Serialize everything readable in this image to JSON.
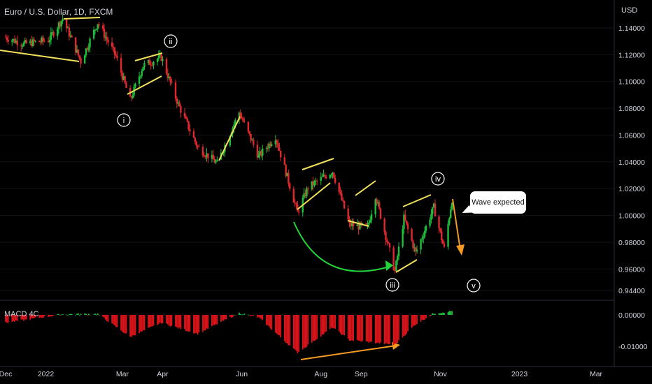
{
  "header": {
    "title": "Euro / U.S. Dollar, 1D, FXCM",
    "currency": "USD"
  },
  "macd": {
    "label": "MACD 4C",
    "ticks": [
      "0.00000",
      "-0.01000"
    ]
  },
  "chart_data": [
    {
      "type": "candlestick",
      "title": "Euro / U.S. Dollar, 1D, FXCM",
      "ylabel": "USD",
      "x_ticks": [
        "Dec",
        "2022",
        "Mar",
        "Apr",
        "Jun",
        "Aug",
        "Sep",
        "Nov",
        "2023",
        "Mar"
      ],
      "y_ticks": [
        "1.14000",
        "1.12000",
        "1.10000",
        "1.08000",
        "1.06000",
        "1.04000",
        "1.02000",
        "1.00000",
        "0.98000",
        "0.96000",
        "0.94400"
      ],
      "ylim": [
        0.938,
        1.152
      ],
      "close_path": [
        [
          "2021-12-01",
          1.133
        ],
        [
          "2021-12-15",
          1.128
        ],
        [
          "2022-01-03",
          1.131
        ],
        [
          "2022-01-14",
          1.147
        ],
        [
          "2022-01-28",
          1.115
        ],
        [
          "2022-02-10",
          1.144
        ],
        [
          "2022-02-24",
          1.119
        ],
        [
          "2022-03-07",
          1.086
        ],
        [
          "2022-03-17",
          1.112
        ],
        [
          "2022-03-31",
          1.118
        ],
        [
          "2022-04-13",
          1.083
        ],
        [
          "2022-04-28",
          1.051
        ],
        [
          "2022-05-13",
          1.039
        ],
        [
          "2022-05-30",
          1.077
        ],
        [
          "2022-06-14",
          1.044
        ],
        [
          "2022-06-27",
          1.059
        ],
        [
          "2022-07-14",
          1.002
        ],
        [
          "2022-07-22",
          1.021
        ],
        [
          "2022-08-10",
          1.033
        ],
        [
          "2022-08-23",
          0.993
        ],
        [
          "2022-09-06",
          0.991
        ],
        [
          "2022-09-12",
          1.015
        ],
        [
          "2022-09-27",
          0.958
        ],
        [
          "2022-10-04",
          0.998
        ],
        [
          "2022-10-13",
          0.972
        ],
        [
          "2022-10-27",
          1.006
        ],
        [
          "2022-11-04",
          0.975
        ],
        [
          "2022-11-10",
          1.012
        ]
      ],
      "wave_labels": [
        "i",
        "ii",
        "iii",
        "iv",
        "v"
      ],
      "annotation": "Wave expected"
    },
    {
      "type": "histogram",
      "title": "MACD 4C",
      "y_ticks": [
        "0.00000",
        "-0.01000"
      ],
      "ylim": [
        -0.0135,
        0.0015
      ],
      "key_values": [
        [
          "2021-12-01",
          -0.0025
        ],
        [
          "2022-01-14",
          0.0002
        ],
        [
          "2022-02-10",
          0.0003
        ],
        [
          "2022-03-07",
          -0.007
        ],
        [
          "2022-03-31",
          -0.0025
        ],
        [
          "2022-04-28",
          -0.006
        ],
        [
          "2022-05-30",
          0.0006
        ],
        [
          "2022-06-14",
          -0.0008
        ],
        [
          "2022-07-14",
          -0.012
        ],
        [
          "2022-08-10",
          -0.004
        ],
        [
          "2022-08-23",
          -0.008
        ],
        [
          "2022-09-27",
          -0.0095
        ],
        [
          "2022-10-13",
          -0.003
        ],
        [
          "2022-10-27",
          0.0005
        ],
        [
          "2022-11-10",
          0.0012
        ]
      ]
    }
  ]
}
